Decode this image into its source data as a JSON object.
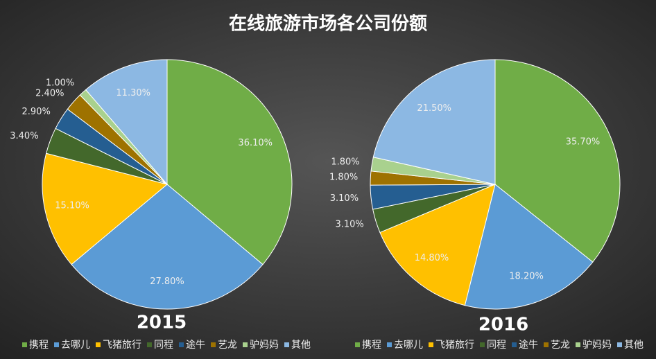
{
  "title": "在线旅游市场各公司份额",
  "chart_data": [
    {
      "type": "pie",
      "title": "2015",
      "categories": [
        "携程",
        "去哪儿",
        "飞猪旅行",
        "同程",
        "途牛",
        "艺龙",
        "驴妈妈",
        "其他"
      ],
      "colors": [
        "#70ad47",
        "#5b9bd5",
        "#ffc000",
        "#43682b",
        "#255e91",
        "#9e7200",
        "#a9d18e",
        "#8cb8e3"
      ],
      "values": [
        36.1,
        27.8,
        15.1,
        3.4,
        2.9,
        2.4,
        1.0,
        11.3
      ],
      "value_labels": [
        "36.10%",
        "27.80%",
        "15.10%",
        "3.40%",
        "2.90%",
        "2.40%",
        "1.00%",
        "11.30%"
      ]
    },
    {
      "type": "pie",
      "title": "2016",
      "categories": [
        "携程",
        "去哪儿",
        "飞猪旅行",
        "同程",
        "途牛",
        "艺龙",
        "驴妈妈",
        "其他"
      ],
      "colors": [
        "#70ad47",
        "#5b9bd5",
        "#ffc000",
        "#43682b",
        "#255e91",
        "#9e7200",
        "#a9d18e",
        "#8cb8e3"
      ],
      "values": [
        35.7,
        18.2,
        14.8,
        3.1,
        3.1,
        1.8,
        1.8,
        21.5
      ],
      "value_labels": [
        "35.70%",
        "18.20%",
        "14.80%",
        "3.10%",
        "3.10%",
        "1.80%",
        "1.80%",
        "21.50%"
      ]
    }
  ]
}
